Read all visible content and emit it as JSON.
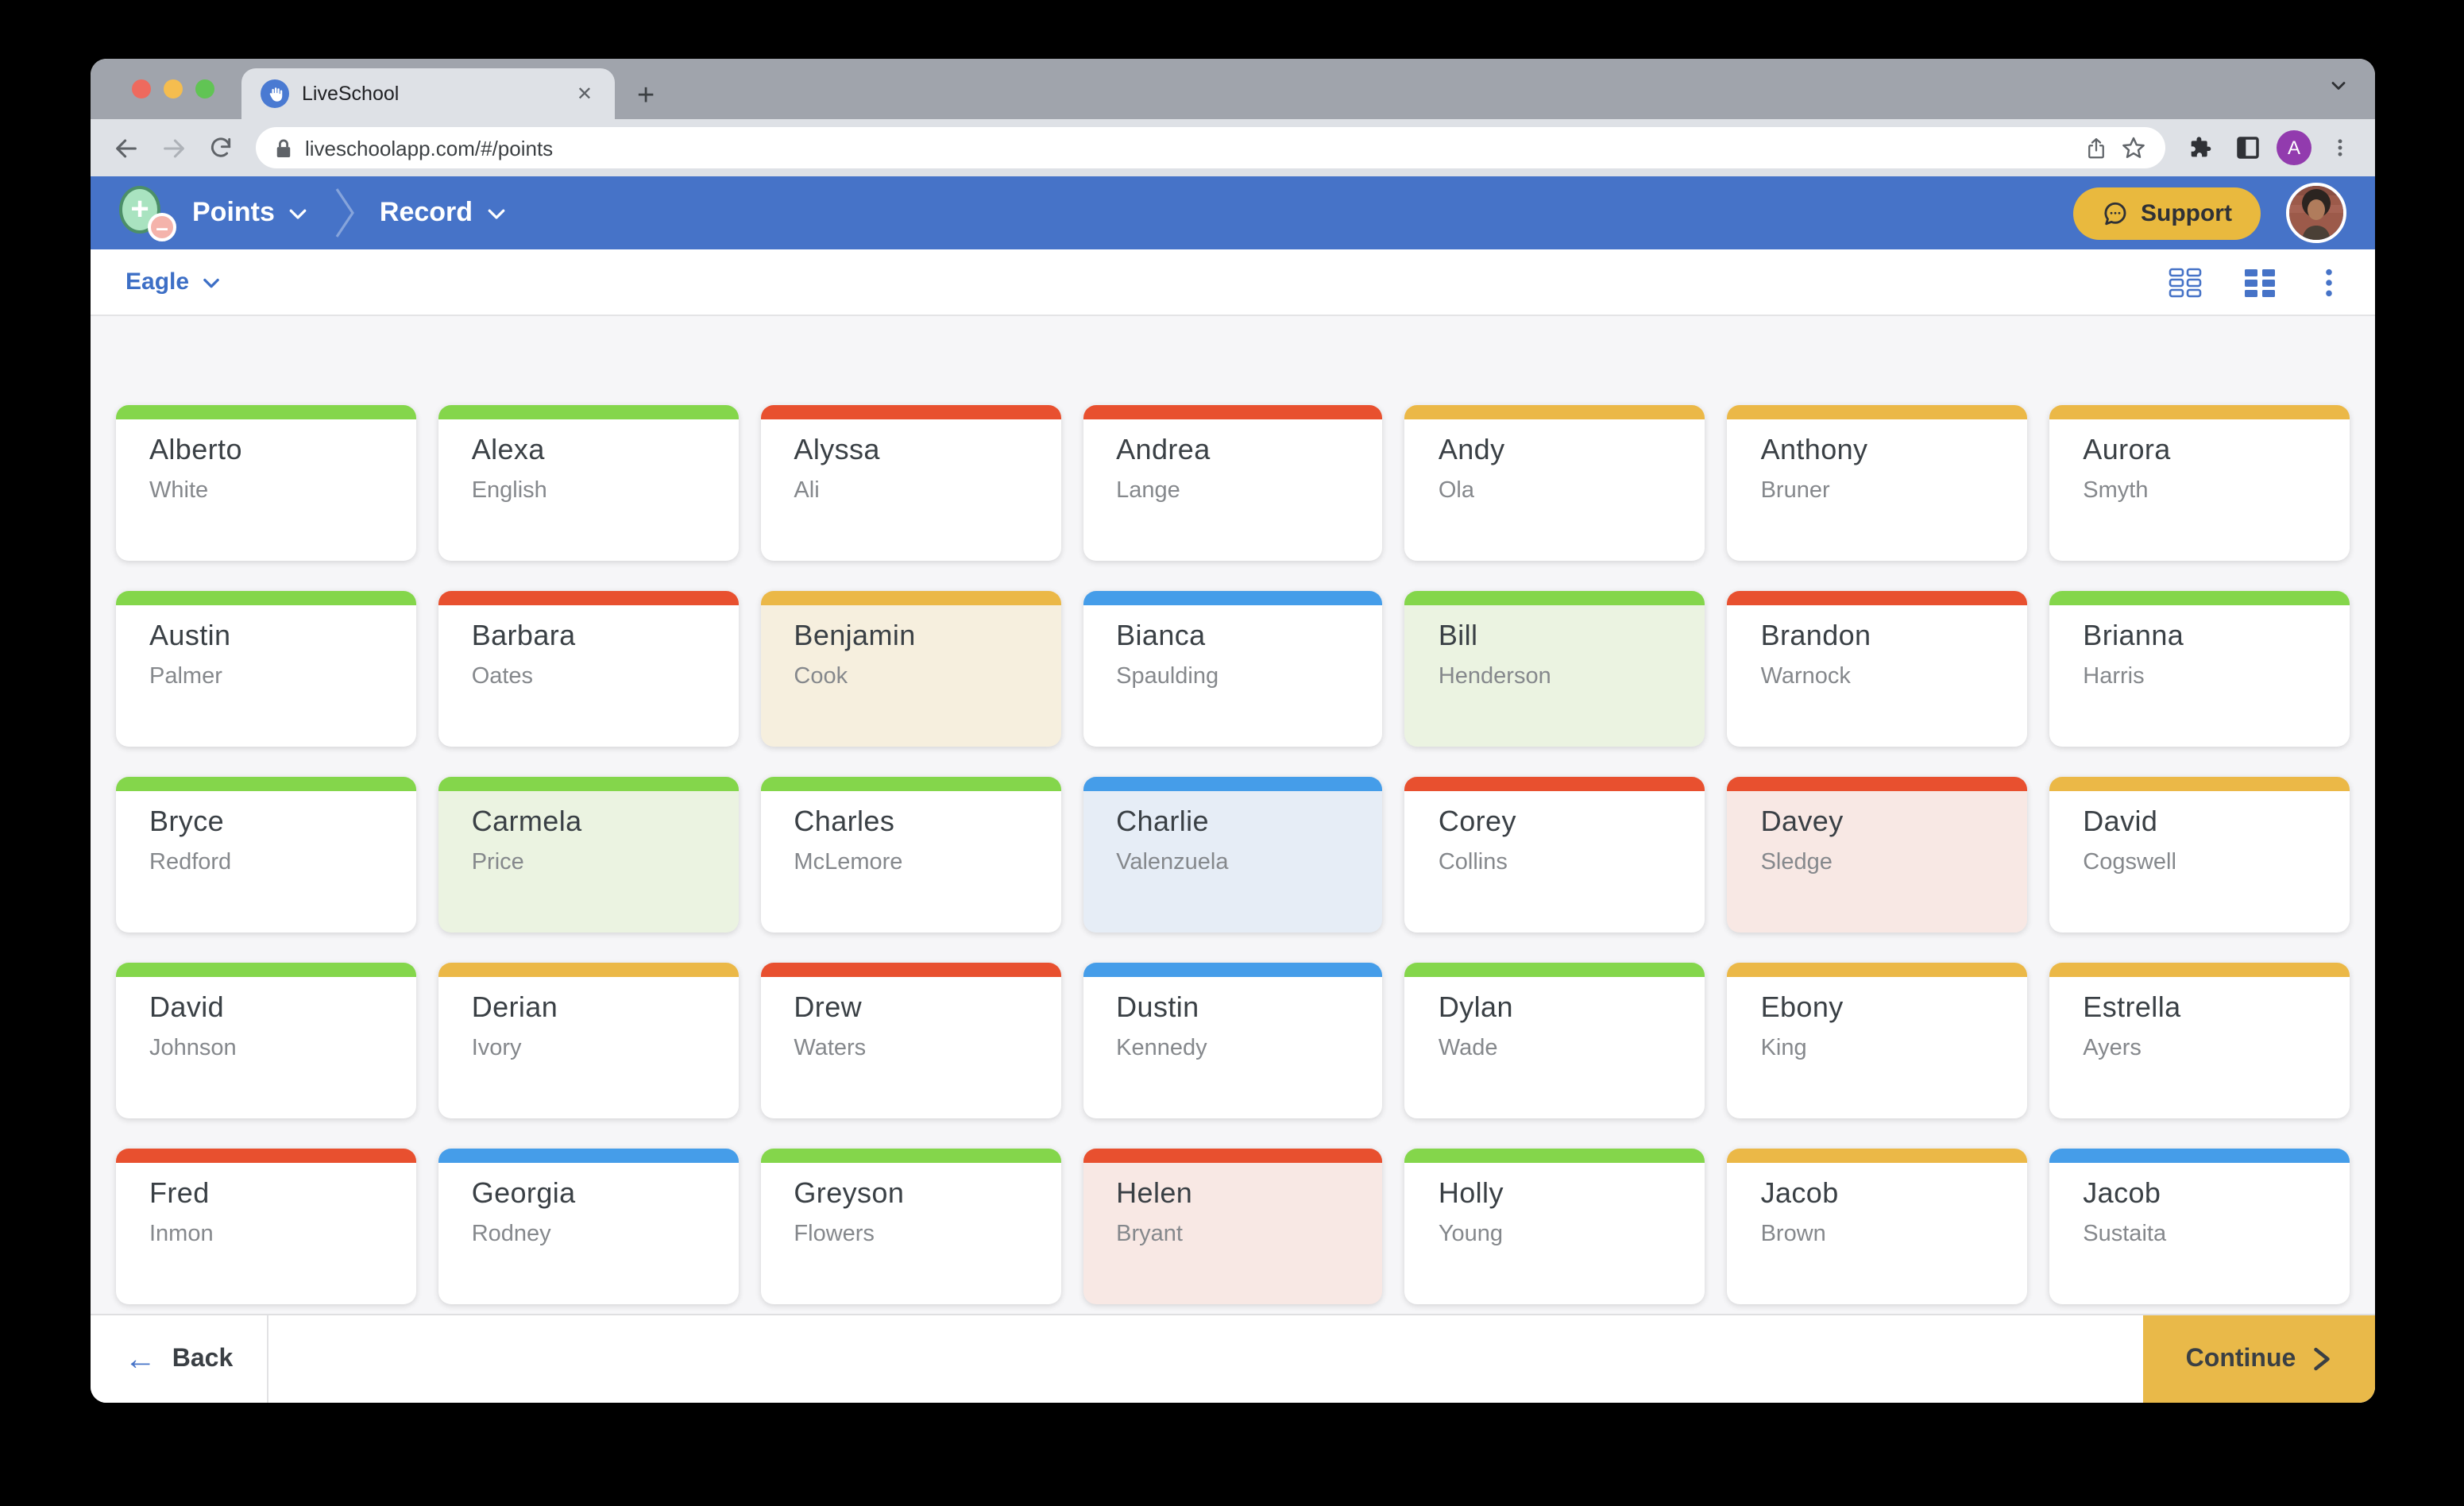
{
  "browser": {
    "tab_title": "LiveSchool",
    "tab_close_glyph": "✕",
    "new_tab_glyph": "+",
    "url": "liveschoolapp.com/#/points",
    "profile_initial": "A"
  },
  "navbar": {
    "breadcrumb": {
      "points_label": "Points",
      "record_label": "Record",
      "separator_glyph": "›"
    },
    "support_label": "Support"
  },
  "subheader": {
    "roster_name": "Eagle"
  },
  "footer": {
    "back_label": "Back",
    "continue_label": "Continue",
    "back_arrow_glyph": "←",
    "continue_arrow_glyph": "›"
  },
  "icons": {
    "favicon": "raised-hand-on-blue-circle",
    "logo": "plus-circle-and-minus-circle",
    "support": "chat-bubble",
    "view_toggle_1": "grid-outline",
    "view_toggle_2": "grid-filled",
    "menu": "vertical-ellipsis"
  },
  "colors": {
    "green": "#84D64B",
    "red": "#E8502F",
    "yellow": "#EBB847",
    "blue": "#459DE9",
    "navbar_blue": "#4673C8",
    "accent_yellow": "#E9B93E"
  },
  "highlight_colors": {
    "green": "#EBF3E1",
    "red": "#F8E8E4",
    "yellow": "#F6EFDE",
    "blue": "#E6EDF6"
  },
  "students": [
    {
      "first": "Alberto",
      "last": "White",
      "color": "green",
      "highlighted": false
    },
    {
      "first": "Alexa",
      "last": "English",
      "color": "green",
      "highlighted": false
    },
    {
      "first": "Alyssa",
      "last": "Ali",
      "color": "red",
      "highlighted": false
    },
    {
      "first": "Andrea",
      "last": "Lange",
      "color": "red",
      "highlighted": false
    },
    {
      "first": "Andy",
      "last": "Ola",
      "color": "yellow",
      "highlighted": false
    },
    {
      "first": "Anthony",
      "last": "Bruner",
      "color": "yellow",
      "highlighted": false
    },
    {
      "first": "Aurora",
      "last": "Smyth",
      "color": "yellow",
      "highlighted": false
    },
    {
      "first": "Austin",
      "last": "Palmer",
      "color": "green",
      "highlighted": false
    },
    {
      "first": "Barbara",
      "last": "Oates",
      "color": "red",
      "highlighted": false
    },
    {
      "first": "Benjamin",
      "last": "Cook",
      "color": "yellow",
      "highlighted": true
    },
    {
      "first": "Bianca",
      "last": "Spaulding",
      "color": "blue",
      "highlighted": false
    },
    {
      "first": "Bill",
      "last": "Henderson",
      "color": "green",
      "highlighted": true
    },
    {
      "first": "Brandon",
      "last": "Warnock",
      "color": "red",
      "highlighted": false
    },
    {
      "first": "Brianna",
      "last": "Harris",
      "color": "green",
      "highlighted": false
    },
    {
      "first": "Bryce",
      "last": "Redford",
      "color": "green",
      "highlighted": false
    },
    {
      "first": "Carmela",
      "last": "Price",
      "color": "green",
      "highlighted": true
    },
    {
      "first": "Charles",
      "last": "McLemore",
      "color": "green",
      "highlighted": false
    },
    {
      "first": "Charlie",
      "last": "Valenzuela",
      "color": "blue",
      "highlighted": true
    },
    {
      "first": "Corey",
      "last": "Collins",
      "color": "red",
      "highlighted": false
    },
    {
      "first": "Davey",
      "last": "Sledge",
      "color": "red",
      "highlighted": true
    },
    {
      "first": "David",
      "last": "Cogswell",
      "color": "yellow",
      "highlighted": false
    },
    {
      "first": "David",
      "last": "Johnson",
      "color": "green",
      "highlighted": false
    },
    {
      "first": "Derian",
      "last": "Ivory",
      "color": "yellow",
      "highlighted": false
    },
    {
      "first": "Drew",
      "last": "Waters",
      "color": "red",
      "highlighted": false
    },
    {
      "first": "Dustin",
      "last": "Kennedy",
      "color": "blue",
      "highlighted": false
    },
    {
      "first": "Dylan",
      "last": "Wade",
      "color": "green",
      "highlighted": false
    },
    {
      "first": "Ebony",
      "last": "King",
      "color": "yellow",
      "highlighted": false
    },
    {
      "first": "Estrella",
      "last": "Ayers",
      "color": "yellow",
      "highlighted": false
    },
    {
      "first": "Fred",
      "last": "Inmon",
      "color": "red",
      "highlighted": false
    },
    {
      "first": "Georgia",
      "last": "Rodney",
      "color": "blue",
      "highlighted": false
    },
    {
      "first": "Greyson",
      "last": "Flowers",
      "color": "green",
      "highlighted": false
    },
    {
      "first": "Helen",
      "last": "Bryant",
      "color": "red",
      "highlighted": true
    },
    {
      "first": "Holly",
      "last": "Young",
      "color": "green",
      "highlighted": false
    },
    {
      "first": "Jacob",
      "last": "Brown",
      "color": "yellow",
      "highlighted": false
    },
    {
      "first": "Jacob",
      "last": "Sustaita",
      "color": "blue",
      "highlighted": false
    }
  ]
}
